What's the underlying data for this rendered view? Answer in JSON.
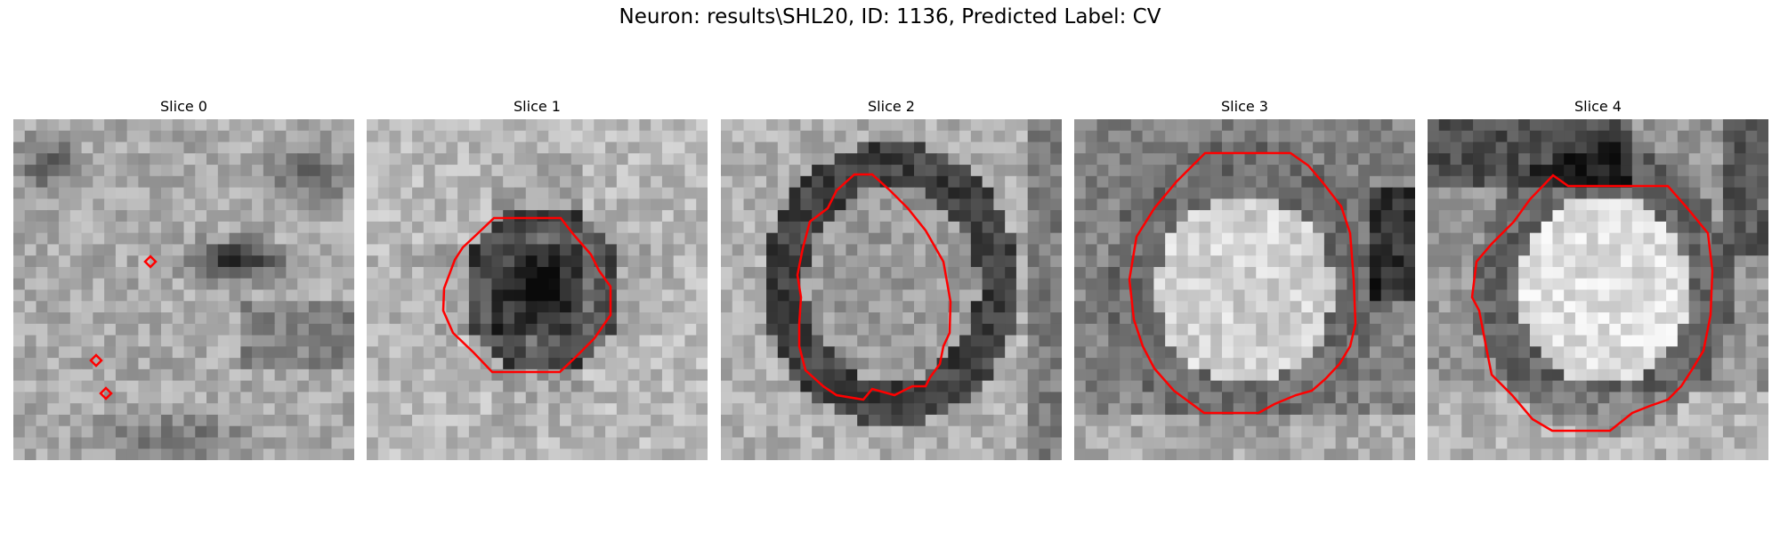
{
  "figure": {
    "title": "Neuron: results\\SHL20, ID: 1136, Predicted Label: CV",
    "overlay_color": "#ff0000",
    "colormap": "grayscale"
  },
  "panels": [
    {
      "title": "Slice 0",
      "overlay": "markers"
    },
    {
      "title": "Slice 1",
      "overlay": "contour"
    },
    {
      "title": "Slice 2",
      "overlay": "contour"
    },
    {
      "title": "Slice 3",
      "overlay": "contour"
    },
    {
      "title": "Slice 4",
      "overlay": "contour"
    }
  ]
}
